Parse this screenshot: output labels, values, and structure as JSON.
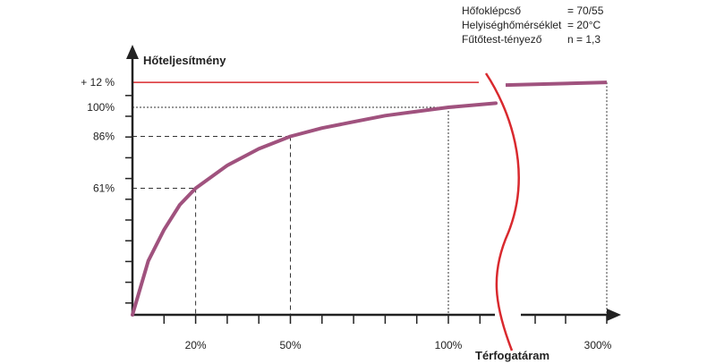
{
  "parameters": [
    {
      "key": "Hőfoklépcső",
      "value": "= 70/55"
    },
    {
      "key": "Helyiséghőmérséklet",
      "value": "= 20°C"
    },
    {
      "key": "Fűtőtest-tényező",
      "value": "n = 1,3"
    }
  ],
  "chart_data": {
    "type": "line",
    "ylabel": "Hőteljesítmény",
    "xlabel": "Térfogatáram",
    "x_unit": "percent of nominal flow",
    "y_unit": "percent of nominal heat output",
    "x_ticks": [
      "20%",
      "50%",
      "100%",
      "300%"
    ],
    "y_ticks": [
      "61%",
      "86%",
      "100%",
      "+ 12 %"
    ],
    "axis_break": true,
    "series": [
      {
        "color": "#a0527e",
        "points": [
          {
            "x": 0,
            "y": 0
          },
          {
            "x": 5,
            "y": 26
          },
          {
            "x": 10,
            "y": 41
          },
          {
            "x": 15,
            "y": 53
          },
          {
            "x": 20,
            "y": 61
          },
          {
            "x": 30,
            "y": 72
          },
          {
            "x": 40,
            "y": 80
          },
          {
            "x": 50,
            "y": 86
          },
          {
            "x": 60,
            "y": 90
          },
          {
            "x": 70,
            "y": 93
          },
          {
            "x": 80,
            "y": 96
          },
          {
            "x": 90,
            "y": 98
          },
          {
            "x": 100,
            "y": 100
          },
          {
            "x": 115,
            "y": 102
          },
          {
            "x": 300,
            "y": 112
          }
        ]
      }
    ],
    "reference_lines": [
      {
        "y": 112,
        "color": "#d9292e",
        "label": "+ 12 %"
      },
      {
        "y": 100,
        "style": "dotted",
        "x": 100
      },
      {
        "y": 86,
        "style": "dashed",
        "x": 50
      },
      {
        "y": 61,
        "style": "dashed",
        "x": 20
      },
      {
        "x": 300,
        "style": "dotted"
      }
    ],
    "colors": {
      "curve": "#a0527e",
      "highlight": "#d9292e",
      "axis": "#222222"
    }
  }
}
